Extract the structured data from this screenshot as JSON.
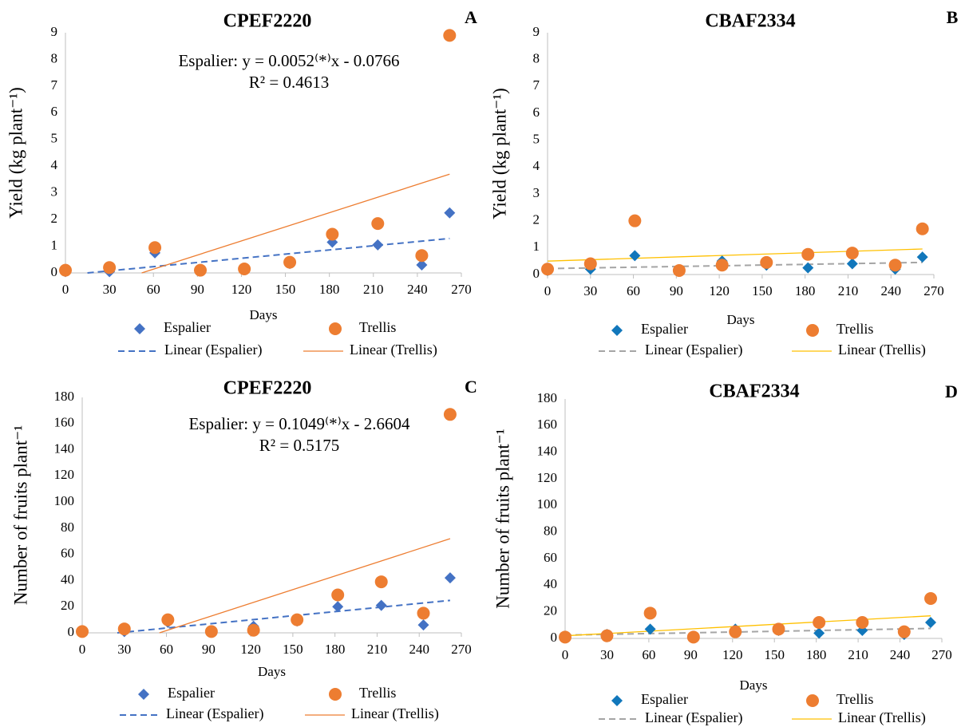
{
  "chart_data": [
    {
      "type": "scatter",
      "title": "CPEF2220",
      "panel": "A",
      "ylabel": "Yield (kg plant⁻¹)",
      "xlabel": "Days",
      "annotation": [
        "Espalier: y = 0.0052⁽*⁾x - 0.0766",
        "R² = 0.4613"
      ],
      "x": [
        0,
        30,
        61,
        92,
        122,
        153,
        182,
        213,
        243,
        262
      ],
      "series": [
        {
          "name": "Espalier",
          "color": "#4472c4",
          "marker": "diamond",
          "values": [
            0.05,
            0.05,
            0.75,
            0.1,
            0.15,
            0.35,
            1.15,
            1.05,
            0.3,
            2.25
          ]
        },
        {
          "name": "Trellis",
          "color": "#ed7d31",
          "marker": "circle",
          "values": [
            0.1,
            0.2,
            0.95,
            0.1,
            0.15,
            0.4,
            1.45,
            1.85,
            0.65,
            8.9
          ]
        }
      ],
      "trendlines": [
        {
          "name": "Linear (Espalier)",
          "color": "#4472c4",
          "style": "dashed",
          "x": [
            15,
            262
          ],
          "values": [
            0,
            1.29
          ]
        },
        {
          "name": "Linear (Trellis)",
          "color": "#ed7d31",
          "style": "solid",
          "x": [
            52,
            262
          ],
          "values": [
            0,
            3.7
          ]
        }
      ],
      "xlim": [
        0,
        270
      ],
      "xticks": [
        0,
        30,
        60,
        90,
        120,
        150,
        180,
        210,
        240,
        270
      ],
      "ylim": [
        0,
        9
      ],
      "yticks": [
        0,
        1,
        2,
        3,
        4,
        5,
        6,
        7,
        8,
        9
      ]
    },
    {
      "type": "scatter",
      "title": "CBAF2334",
      "panel": "B",
      "ylabel": "Yield (kg plant⁻¹)",
      "xlabel": "Days",
      "x": [
        0,
        30,
        61,
        92,
        122,
        153,
        182,
        213,
        243,
        262
      ],
      "series": [
        {
          "name": "Espalier",
          "color": "#1177bb",
          "marker": "diamond",
          "values": [
            0.15,
            0.2,
            0.7,
            0.15,
            0.5,
            0.35,
            0.25,
            0.4,
            0.2,
            0.65
          ]
        },
        {
          "name": "Trellis",
          "color": "#ed7d31",
          "marker": "circle",
          "values": [
            0.2,
            0.4,
            2.0,
            0.15,
            0.35,
            0.45,
            0.75,
            0.8,
            0.35,
            1.7
          ]
        }
      ],
      "trendlines": [
        {
          "name": "Linear (Espalier)",
          "color": "#a5a5a5",
          "style": "dashed",
          "x": [
            0,
            262
          ],
          "values": [
            0.22,
            0.45
          ]
        },
        {
          "name": "Linear (Trellis)",
          "color": "#ffc000",
          "style": "solid",
          "x": [
            0,
            262
          ],
          "values": [
            0.5,
            0.95
          ]
        }
      ],
      "xlim": [
        0,
        270
      ],
      "xticks": [
        0,
        30,
        60,
        90,
        120,
        150,
        180,
        210,
        240,
        270
      ],
      "ylim": [
        0,
        9
      ],
      "yticks": [
        0,
        1,
        2,
        3,
        4,
        5,
        6,
        7,
        8,
        9
      ]
    },
    {
      "type": "scatter",
      "title": "CPEF2220",
      "panel": "C",
      "ylabel": "Number of fruits plant⁻¹",
      "xlabel": "Days",
      "annotation": [
        "Espalier: y = 0.1049⁽*⁾x - 2.6604",
        "R² = 0.5175"
      ],
      "x": [
        0,
        30,
        61,
        92,
        122,
        153,
        182,
        213,
        243,
        262
      ],
      "series": [
        {
          "name": "Espalier",
          "color": "#4472c4",
          "marker": "diamond",
          "values": [
            1,
            1,
            8,
            1,
            5,
            9,
            20,
            21,
            6,
            42
          ]
        },
        {
          "name": "Trellis",
          "color": "#ed7d31",
          "marker": "circle",
          "values": [
            1,
            3,
            10,
            1,
            2,
            10,
            29,
            39,
            15,
            167
          ]
        }
      ],
      "trendlines": [
        {
          "name": "Linear (Espalier)",
          "color": "#4472c4",
          "style": "dashed",
          "x": [
            25,
            262
          ],
          "values": [
            0,
            24.8
          ]
        },
        {
          "name": "Linear (Trellis)",
          "color": "#ed7d31",
          "style": "solid",
          "x": [
            55,
            262
          ],
          "values": [
            0,
            72
          ]
        }
      ],
      "xlim": [
        0,
        270
      ],
      "xticks": [
        0,
        30,
        60,
        90,
        120,
        150,
        180,
        210,
        240,
        270
      ],
      "ylim": [
        0,
        180
      ],
      "yticks": [
        0,
        20,
        40,
        60,
        80,
        100,
        120,
        140,
        160,
        180
      ]
    },
    {
      "type": "scatter",
      "title": "CBAF2334",
      "panel": "D",
      "ylabel": "Number of fruits plant⁻¹",
      "xlabel": "Days",
      "x": [
        0,
        30,
        61,
        92,
        122,
        153,
        182,
        213,
        243,
        262
      ],
      "series": [
        {
          "name": "Espalier",
          "color": "#1177bb",
          "marker": "diamond",
          "values": [
            1,
            3,
            7,
            1,
            7,
            6,
            4,
            6,
            3,
            12
          ]
        },
        {
          "name": "Trellis",
          "color": "#ed7d31",
          "marker": "circle",
          "values": [
            1,
            2,
            19,
            1,
            5,
            7,
            12,
            12,
            5,
            30
          ]
        }
      ],
      "trendlines": [
        {
          "name": "Linear (Espalier)",
          "color": "#a5a5a5",
          "style": "dashed",
          "x": [
            0,
            262
          ],
          "values": [
            2.5,
            7.5
          ]
        },
        {
          "name": "Linear (Trellis)",
          "color": "#ffc000",
          "style": "solid",
          "x": [
            0,
            262
          ],
          "values": [
            2,
            17
          ]
        }
      ],
      "xlim": [
        0,
        270
      ],
      "xticks": [
        0,
        30,
        60,
        90,
        120,
        150,
        180,
        210,
        240,
        270
      ],
      "ylim": [
        0,
        180
      ],
      "yticks": [
        0,
        20,
        40,
        60,
        80,
        100,
        120,
        140,
        160,
        180
      ]
    }
  ]
}
